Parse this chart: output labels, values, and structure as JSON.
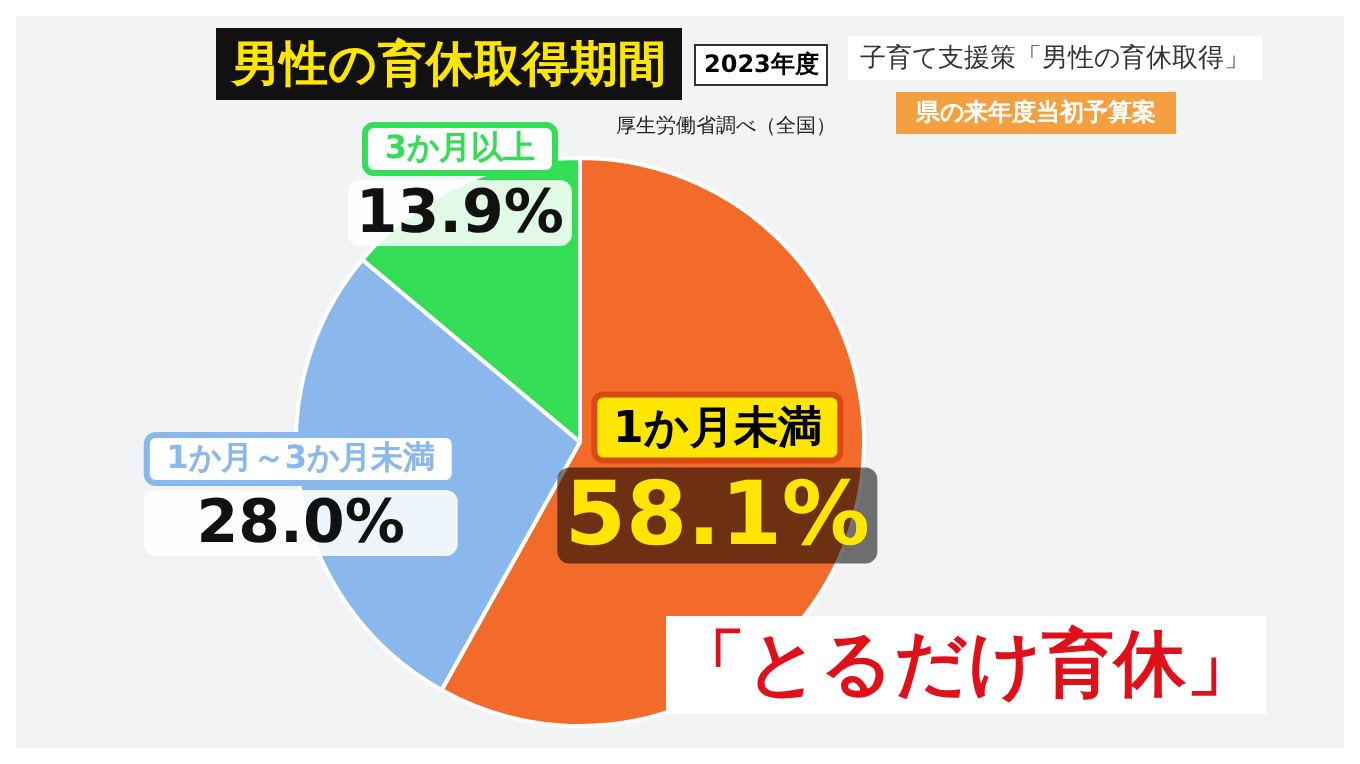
{
  "chart_data": {
    "type": "pie",
    "title": "男性の育休取得期間",
    "subtitle": "2023年度",
    "categories": [
      "1か月未満",
      "1か月～3か月未満",
      "3か月以上"
    ],
    "values": [
      58.1,
      28.0,
      13.9
    ],
    "colors": [
      "#f26b2a",
      "#8ab8ec",
      "#33dd55"
    ],
    "value_labels": [
      "58.1%",
      "28.0%",
      "13.9%"
    ],
    "legend": false,
    "annotations": [
      "厚生労働省調べ（全国）",
      "子育て支援策「男性の育休取得」",
      "県の来年度当初予算案",
      "「とるだけ育休」"
    ]
  }
}
